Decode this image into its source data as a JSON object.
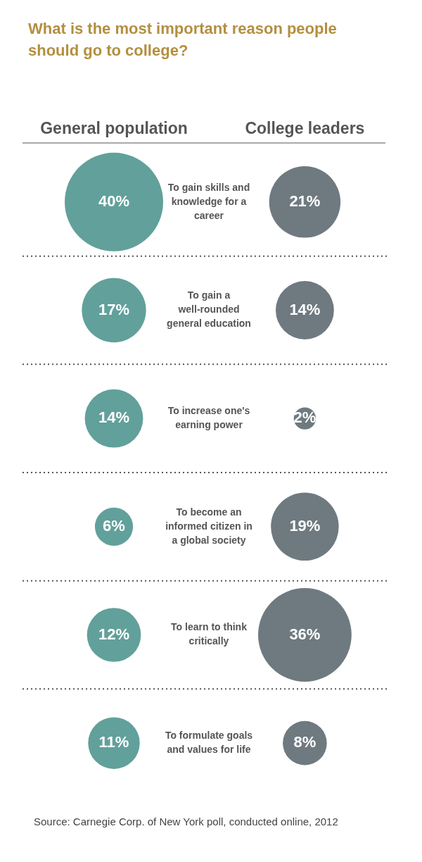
{
  "chart_data": {
    "type": "other",
    "title": "What is the most important reason people should go to college?",
    "categories": [
      "To gain skills and knowledge for a career",
      "To gain a well-rounded general education",
      "To increase one's earning power",
      "To become an informed citizen in a global society",
      "To learn to think critically",
      "To formulate goals and values for life"
    ],
    "series": [
      {
        "name": "General population",
        "color": "#62a09b",
        "values": [
          40,
          17,
          14,
          6,
          12,
          11
        ],
        "value_labels": [
          "40%",
          "17%",
          "14%",
          "6%",
          "12%",
          "11%"
        ]
      },
      {
        "name": "College leaders",
        "color": "#6f7a80",
        "values": [
          21,
          14,
          2,
          19,
          36,
          8
        ],
        "value_labels": [
          "21%",
          "14%",
          "2%",
          "19%",
          "36%",
          "8%"
        ]
      }
    ],
    "annotations": [
      "Source: Carnegie Corp. of New York poll, conducted online, 2012"
    ]
  }
}
